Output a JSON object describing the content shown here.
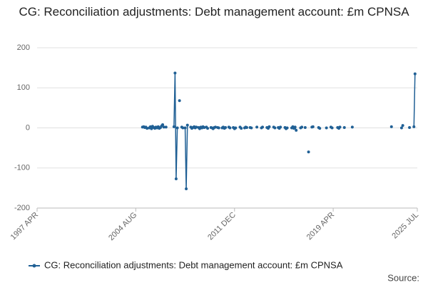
{
  "chart_data": {
    "type": "line",
    "title": "CG: Reconciliation adjustments: Debt management account: £m CPNSA",
    "source_label": "Source:",
    "legend_position": "bottom",
    "grid": true,
    "xlim": [
      1997.25,
      2025.5
    ],
    "xticks": [
      {
        "value": 1997.25,
        "label": "1997 APR"
      },
      {
        "value": 2004.58,
        "label": "2004 AUG"
      },
      {
        "value": 2011.92,
        "label": "2011 DEC"
      },
      {
        "value": 2019.25,
        "label": "2019 APR"
      },
      {
        "value": 2025.5,
        "label": "2025 JUL"
      }
    ],
    "ylim": [
      -200,
      200
    ],
    "yticks": [
      -200,
      -100,
      0,
      100,
      200
    ],
    "series": [
      {
        "name": "CG: Reconciliation adjustments: Debt management account: £m CPNSA",
        "color": "#206095",
        "x": [
          2005.08,
          2005.17,
          2005.25,
          2005.33,
          2005.42,
          2005.5,
          2005.58,
          2005.67,
          2005.75,
          2005.83,
          2005.92,
          2006.0,
          2006.08,
          2006.17,
          2006.25,
          2006.33,
          2006.42,
          2006.5,
          2006.58,
          2006.67,
          2006.75,
          2006.83,
          2006.92,
          2007.42,
          2007.5,
          2007.58,
          2007.67,
          2007.75,
          2007.83,
          2007.92,
          2008.0,
          2008.08,
          2008.17,
          2008.25,
          2008.33,
          2008.42,
          2008.5,
          2008.67,
          2008.75,
          2008.83,
          2008.92,
          2009.0,
          2009.08,
          2009.17,
          2009.25,
          2009.33,
          2009.42,
          2009.5,
          2009.58,
          2009.67,
          2009.75,
          2009.83,
          2009.92,
          2010.0,
          2010.17,
          2010.25,
          2010.33,
          2010.42,
          2010.5,
          2010.58,
          2010.67,
          2010.75,
          2010.83,
          2011.0,
          2011.08,
          2011.17,
          2011.25,
          2011.33,
          2011.5,
          2011.58,
          2011.67,
          2011.83,
          2011.92,
          2012.0,
          2012.08,
          2012.33,
          2012.42,
          2012.5,
          2012.67,
          2012.75,
          2012.83,
          2012.92,
          2013.08,
          2013.17,
          2013.25,
          2013.58,
          2013.67,
          2013.92,
          2014.0,
          2014.08,
          2014.33,
          2014.42,
          2014.5,
          2014.58,
          2014.83,
          2014.92,
          2015.0,
          2015.17,
          2015.25,
          2015.33,
          2015.42,
          2015.67,
          2015.75,
          2015.83,
          2015.92,
          2016.17,
          2016.25,
          2016.33,
          2016.42,
          2016.5,
          2016.58,
          2016.83,
          2016.92,
          2017.0,
          2017.17,
          2017.25,
          2017.42,
          2017.5,
          2017.67,
          2017.75,
          2017.83,
          2018.17,
          2018.25,
          2018.33,
          2018.75,
          2018.83,
          2019.08,
          2019.17,
          2019.25,
          2019.58,
          2019.67,
          2019.75,
          2019.83,
          2020.08,
          2020.17,
          2020.67,
          2020.75,
          2023.58,
          2023.67,
          2024.33,
          2024.42,
          2024.5,
          2024.92,
          2025.0,
          2025.25,
          2025.33
        ],
        "values": [
          2,
          3,
          1,
          2,
          -1,
          null,
          0,
          3,
          -2,
          4,
          1,
          -1,
          2,
          0,
          3,
          -1,
          1,
          5,
          8,
          2,
          null,
          2,
          null,
          3,
          137,
          -127,
          0,
          null,
          68,
          null,
          2,
          0,
          null,
          0,
          -152,
          7,
          null,
          2,
          -1,
          1,
          3,
          0,
          2,
          null,
          1,
          -2,
          2,
          0,
          3,
          1,
          null,
          2,
          -1,
          null,
          1,
          0,
          -2,
          1,
          2,
          null,
          1,
          0,
          null,
          0,
          2,
          -1,
          1,
          null,
          2,
          0,
          null,
          1,
          -2,
          0,
          null,
          2,
          -1,
          null,
          0,
          2,
          1,
          null,
          1,
          0,
          null,
          2,
          null,
          0,
          2,
          null,
          1,
          -1,
          3,
          null,
          2,
          0,
          null,
          1,
          -1,
          2,
          null,
          1,
          -2,
          0,
          null,
          0,
          3,
          -1,
          2,
          -6,
          null,
          0,
          2,
          null,
          1,
          null,
          -60,
          null,
          2,
          3,
          null,
          1,
          -1,
          null,
          0,
          null,
          2,
          0,
          null,
          1,
          -1,
          2,
          null,
          1,
          null,
          2,
          null,
          3,
          null,
          0,
          6,
          null,
          1,
          null,
          3,
          135
        ]
      }
    ]
  }
}
